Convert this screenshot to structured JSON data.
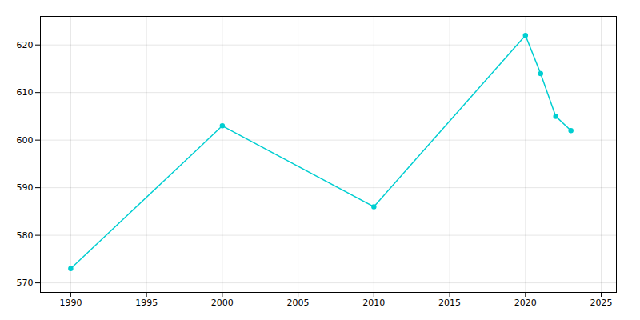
{
  "chart_data": {
    "type": "line",
    "x": [
      1990,
      2000,
      2010,
      2020,
      2021,
      2022,
      2023
    ],
    "values": [
      573,
      603,
      586,
      622,
      614,
      605,
      602
    ],
    "color": "#00CED1",
    "marker": "circle",
    "xlim": [
      1988,
      2026
    ],
    "ylim": [
      568,
      626
    ],
    "xticks": [
      1990,
      1995,
      2000,
      2005,
      2010,
      2015,
      2020,
      2025
    ],
    "yticks": [
      570,
      580,
      590,
      600,
      610,
      620
    ],
    "grid": true
  }
}
